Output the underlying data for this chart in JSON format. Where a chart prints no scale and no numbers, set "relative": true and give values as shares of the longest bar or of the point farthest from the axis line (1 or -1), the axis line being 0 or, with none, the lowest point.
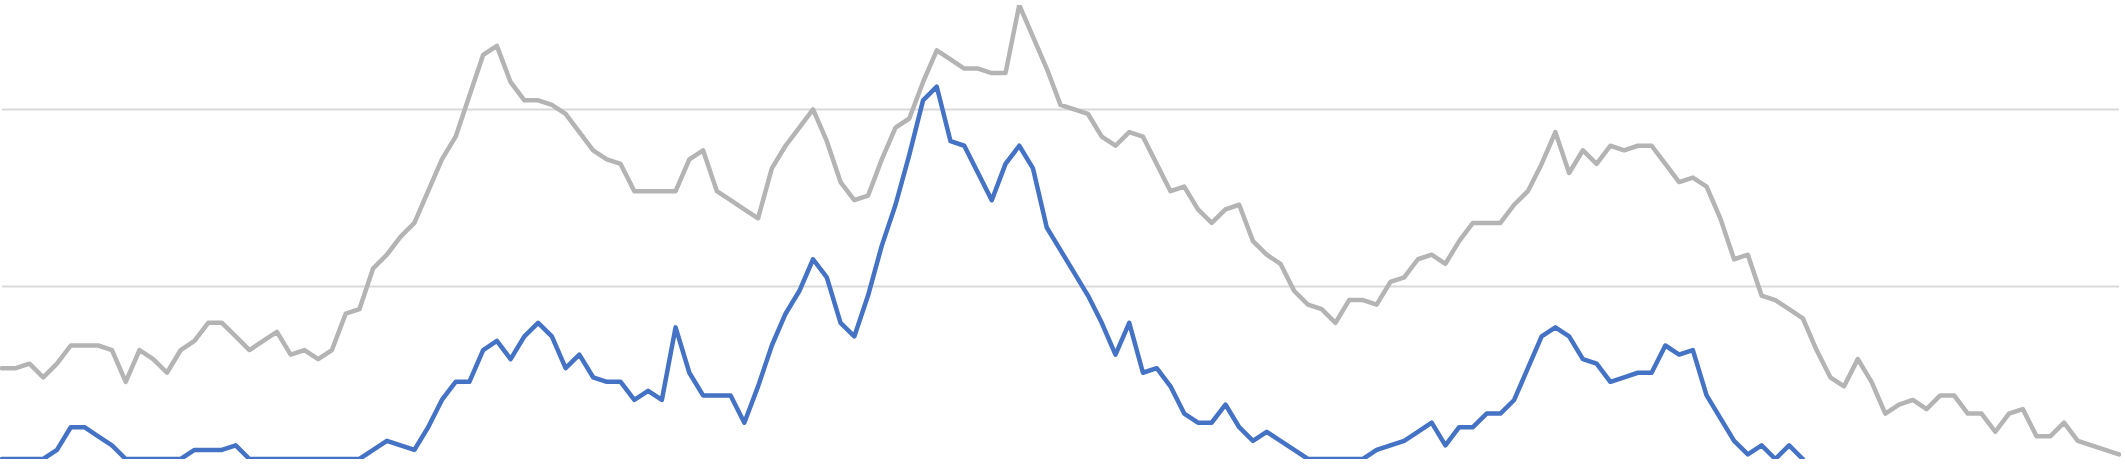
{
  "chart_data": {
    "type": "line",
    "relative": true,
    "ref_lines": [
      {
        "axis": "y",
        "value": 0.38,
        "color": "#d9d9d9"
      },
      {
        "axis": "y",
        "value": 0.77,
        "color": "#d9d9d9"
      }
    ],
    "categories": [
      null,
      null,
      null,
      null,
      null,
      null,
      null,
      null,
      null,
      null,
      null,
      null,
      null,
      null,
      null,
      null,
      null,
      null,
      null,
      null,
      null,
      null,
      null,
      null,
      null,
      null,
      null,
      null,
      null,
      null,
      null,
      null,
      null,
      null,
      null,
      null,
      null,
      null,
      null,
      null,
      null,
      null,
      null,
      null,
      null,
      null,
      null,
      null,
      null,
      null,
      null,
      null,
      null,
      null,
      null,
      null,
      null,
      null,
      null,
      null,
      null,
      null,
      null,
      null,
      null,
      null,
      null,
      null,
      null,
      null,
      null,
      null,
      null,
      null,
      null,
      null,
      null,
      null,
      null,
      null,
      null,
      null,
      null,
      null,
      null,
      null,
      null,
      null,
      null,
      null,
      null,
      null,
      null,
      null,
      null,
      null,
      null,
      null,
      null,
      null,
      null,
      null,
      null,
      null,
      null,
      null,
      null,
      null,
      null,
      null,
      null,
      null,
      null,
      null,
      null,
      null,
      null,
      null,
      null,
      null,
      null,
      null,
      null,
      null,
      null,
      null,
      null,
      null,
      null,
      null,
      null,
      null,
      null,
      null,
      null,
      null,
      null,
      null,
      null,
      null,
      null,
      null,
      null,
      null,
      null,
      null,
      null,
      null,
      null,
      null,
      null,
      null,
      null,
      null,
      null
    ],
    "series": [
      {
        "marker": "none",
        "color": "#b4b4b4",
        "values": [
          0.2,
          0.2,
          0.21,
          0.18,
          0.21,
          0.25,
          0.25,
          0.25,
          0.24,
          0.17,
          0.24,
          0.22,
          0.19,
          0.24,
          0.26,
          0.3,
          0.3,
          0.27,
          0.24,
          0.26,
          0.28,
          0.23,
          0.24,
          0.22,
          0.24,
          0.32,
          0.33,
          0.42,
          0.45,
          0.49,
          0.52,
          0.59,
          0.66,
          0.71,
          0.8,
          0.89,
          0.91,
          0.83,
          0.79,
          0.79,
          0.78,
          0.76,
          0.72,
          0.68,
          0.66,
          0.65,
          0.59,
          0.59,
          0.59,
          0.59,
          0.66,
          0.68,
          0.59,
          0.57,
          0.55,
          0.53,
          0.64,
          0.69,
          0.73,
          0.77,
          0.7,
          0.61,
          0.57,
          0.58,
          0.66,
          0.73,
          0.75,
          0.83,
          0.9,
          0.88,
          0.86,
          0.86,
          0.85,
          0.85,
          1.0,
          0.93,
          0.86,
          0.78,
          0.77,
          0.76,
          0.71,
          0.69,
          0.72,
          0.71,
          0.65,
          0.59,
          0.6,
          0.55,
          0.52,
          0.55,
          0.56,
          0.48,
          0.45,
          0.43,
          0.37,
          0.34,
          0.33,
          0.3,
          0.35,
          0.35,
          0.34,
          0.39,
          0.4,
          0.44,
          0.45,
          0.43,
          0.48,
          0.52,
          0.52,
          0.52,
          0.56,
          0.59,
          0.65,
          0.72,
          0.63,
          0.68,
          0.65,
          0.69,
          0.68,
          0.69,
          0.69,
          0.65,
          0.61,
          0.62,
          0.6,
          0.53,
          0.44,
          0.45,
          0.36,
          0.35,
          0.33,
          0.31,
          0.24,
          0.18,
          0.16,
          0.22,
          0.17,
          0.1,
          0.12,
          0.13,
          0.11,
          0.14,
          0.14,
          0.1,
          0.1,
          0.06,
          0.1,
          0.11,
          0.05,
          0.05,
          0.08,
          0.04,
          0.03,
          0.02,
          0.01
        ]
      },
      {
        "marker": "none",
        "color": "#4472c4",
        "values": [
          0,
          0,
          0,
          0,
          0.02,
          0.07,
          0.07,
          0.05,
          0.03,
          0,
          0,
          0,
          0,
          0,
          0.02,
          0.02,
          0.02,
          0.03,
          0,
          0,
          0,
          0,
          0,
          0,
          0,
          0,
          0,
          0.02,
          0.04,
          0.03,
          0.02,
          0.07,
          0.13,
          0.17,
          0.17,
          0.24,
          0.26,
          0.22,
          0.27,
          0.3,
          0.27,
          0.2,
          0.23,
          0.18,
          0.17,
          0.17,
          0.13,
          0.15,
          0.13,
          0.29,
          0.19,
          0.14,
          0.14,
          0.14,
          0.08,
          0.16,
          0.25,
          0.32,
          0.37,
          0.44,
          0.4,
          0.3,
          0.27,
          0.36,
          0.47,
          0.56,
          0.67,
          0.79,
          0.82,
          0.7,
          0.69,
          0.63,
          0.57,
          0.65,
          0.69,
          0.64,
          0.51,
          0.46,
          0.41,
          0.36,
          0.3,
          0.23,
          0.3,
          0.19,
          0.2,
          0.16,
          0.1,
          0.08,
          0.08,
          0.12,
          0.07,
          0.04,
          0.06,
          0.04,
          0.02,
          0,
          0,
          0,
          0,
          0,
          0.02,
          0.03,
          0.04,
          0.06,
          0.08,
          0.03,
          0.07,
          0.07,
          0.1,
          0.1,
          0.13,
          0.2,
          0.27,
          0.29,
          0.27,
          0.22,
          0.21,
          0.17,
          0.18,
          0.19,
          0.19,
          0.25,
          0.23,
          0.24,
          0.14,
          0.09,
          0.04,
          0.01,
          0.03,
          0,
          0.03,
          0,
          null,
          null,
          null,
          null,
          null,
          null,
          null,
          null,
          null,
          null,
          null,
          null,
          null,
          null,
          null,
          null,
          null,
          null,
          null,
          null,
          null,
          null,
          null
        ]
      }
    ]
  }
}
